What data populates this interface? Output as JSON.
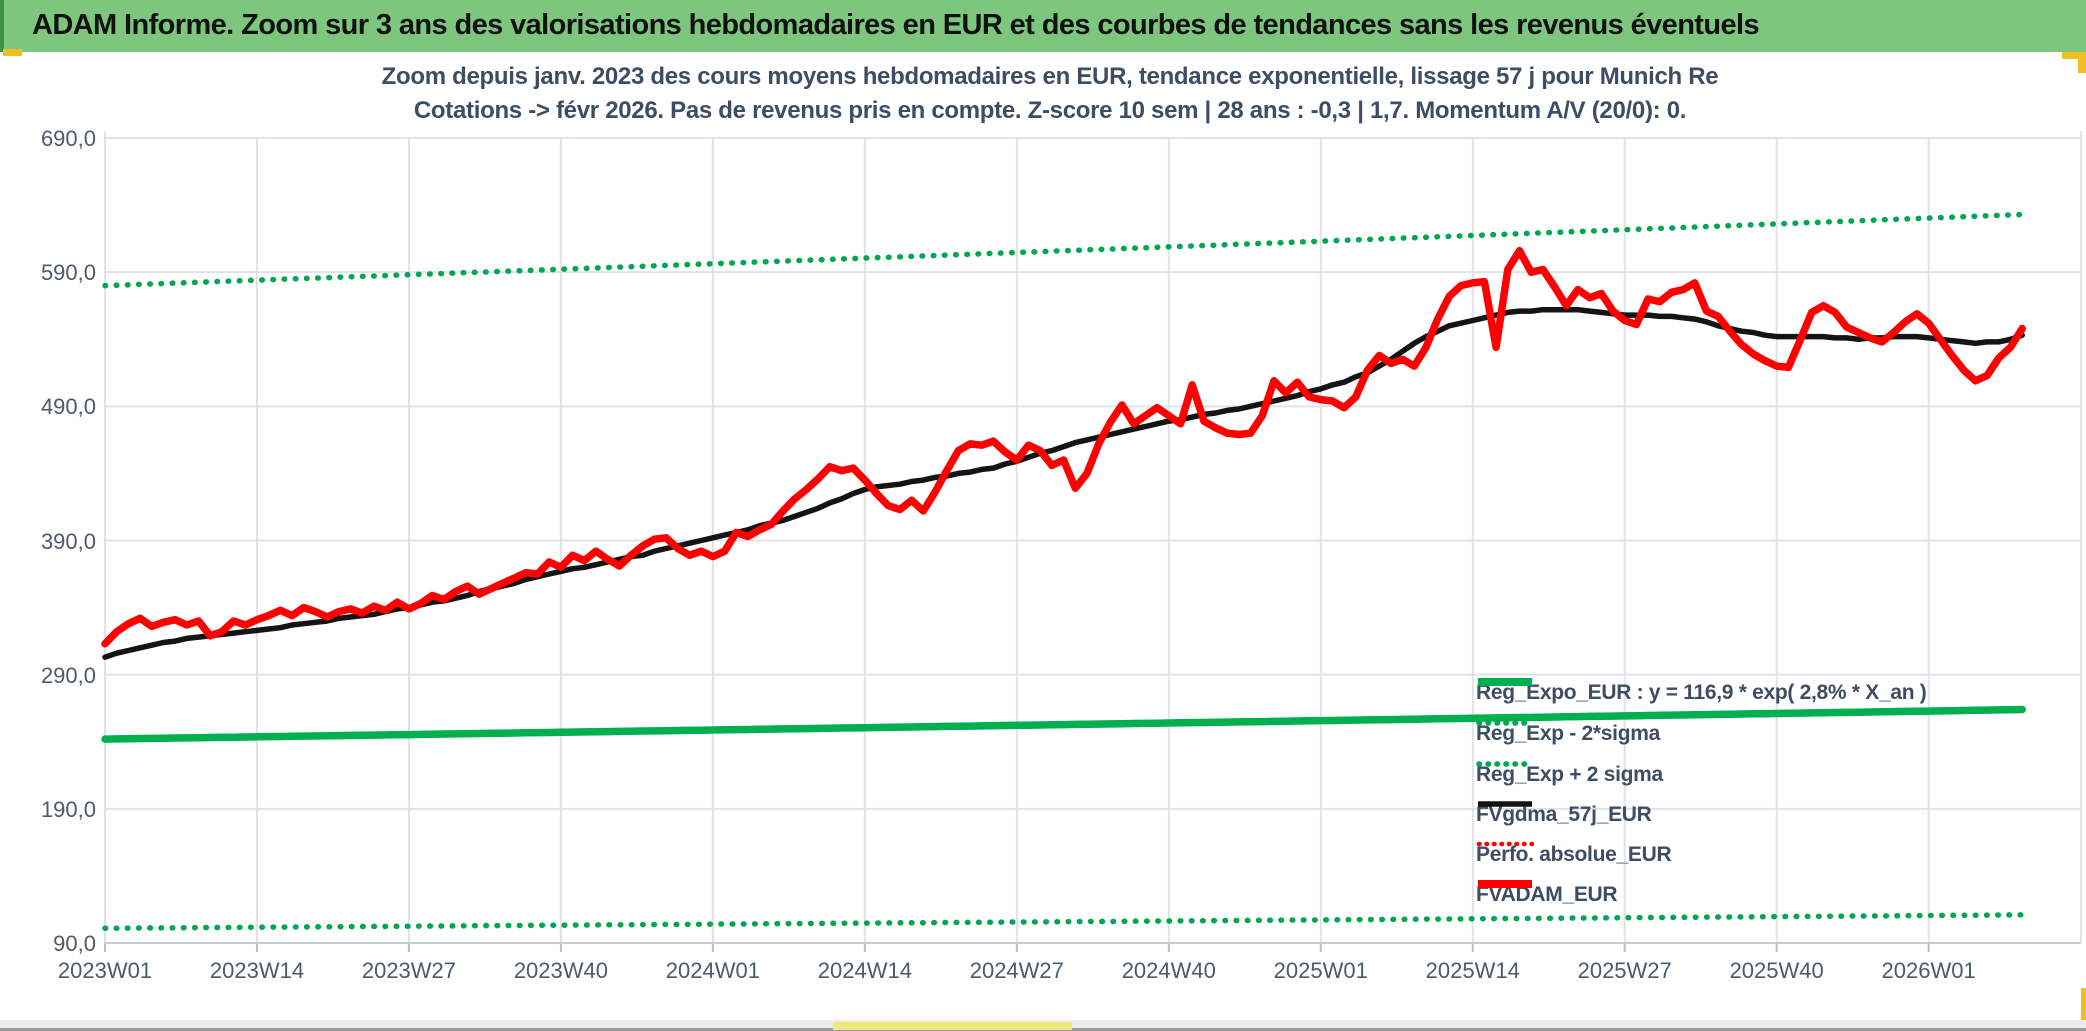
{
  "banner": {
    "title": "ADAM Informe. Zoom sur 3 ans des valorisations hebdomadaires en EUR et des courbes de tendances sans les revenus éventuels"
  },
  "colors": {
    "banner_green": "#7cc67e",
    "banner_edge_green": "#3f9142",
    "accent_yellow": "#efbe25",
    "sheet_tab_yellow": "#efe97c",
    "grid": "#dfe3e9",
    "axis_text": "#4d5a6b",
    "title_text": "#3d4d63",
    "reg_green": "#00b050",
    "dotted_green": "#00a651",
    "series_black": "#141414",
    "series_red": "#fe0000"
  },
  "chart_data": {
    "type": "line",
    "title_line1": "Zoom depuis janv. 2023 des cours moyens hebdomadaires en EUR, tendance exponentielle, lissage 57 j pour Munich Re",
    "title_line2": "Cotations -> févr 2026. Pas de revenus pris en compte. Z-score 10 sem | 28 ans : -0,3 | 1,7. Momentum A/V (20/0): 0.",
    "ylim": [
      90,
      690
    ],
    "y_tick_values": [
      690,
      590,
      490,
      390,
      290,
      190,
      90
    ],
    "y_tick_labels": [
      "690,0",
      "590,0",
      "490,0",
      "390,0",
      "290,0",
      "190,0",
      "90,0"
    ],
    "x_tick_labels": [
      "2023W01",
      "2023W14",
      "2023W27",
      "2023W40",
      "2024W01",
      "2024W14",
      "2024W27",
      "2024W40",
      "2025W01",
      "2025W14",
      "2025W27",
      "2025W40",
      "2026W01"
    ],
    "x_tick_week_step": 13,
    "weeks_total": 164,
    "grid": true,
    "legend_position": "inside-bottom-right",
    "series": [
      {
        "name": "Reg_Expo_EUR : y = 116,9 * exp( 2,8% *  X_an )",
        "style": "solid",
        "color": "#00b050",
        "width": 7.5,
        "trend": {
          "start": 242,
          "end": 264
        }
      },
      {
        "name": "Reg_Exp - 2*sigma",
        "style": "dotted",
        "color": "#00a651",
        "width": 5.5,
        "trend": {
          "start": 101,
          "end": 111
        }
      },
      {
        "name": "Reg_Exp + 2 sigma",
        "style": "dotted",
        "color": "#00a651",
        "width": 5.5,
        "trend": {
          "start": 580,
          "end": 633
        }
      },
      {
        "name": "FVgdma_57j_EUR",
        "style": "solid",
        "color": "#141414",
        "width": 5.5,
        "values": [
          303,
          306,
          308,
          310,
          312,
          314,
          315,
          317,
          318,
          319,
          320,
          321,
          322,
          323,
          324,
          325,
          327,
          328,
          329,
          330,
          332,
          333,
          334,
          335,
          337,
          339,
          340,
          342,
          344,
          345,
          347,
          349,
          352,
          354,
          356,
          358,
          361,
          363,
          365,
          367,
          369,
          370,
          372,
          374,
          376,
          378,
          379,
          382,
          384,
          386,
          388,
          390,
          392,
          394,
          396,
          398,
          401,
          403,
          405,
          408,
          411,
          414,
          418,
          421,
          425,
          428,
          430,
          431,
          432,
          434,
          435,
          437,
          438,
          440,
          441,
          443,
          444,
          447,
          449,
          452,
          455,
          457,
          460,
          463,
          465,
          467,
          469,
          471,
          473,
          475,
          477,
          479,
          480,
          482,
          484,
          485,
          487,
          488,
          490,
          492,
          494,
          496,
          498,
          501,
          503,
          506,
          508,
          512,
          515,
          520,
          525,
          531,
          537,
          542,
          546,
          550,
          552,
          554,
          556,
          558,
          560,
          561,
          561,
          562,
          562,
          562,
          562,
          561,
          560,
          559,
          558,
          558,
          558,
          557,
          557,
          556,
          555,
          553,
          550,
          548,
          546,
          545,
          543,
          542,
          542,
          542,
          542,
          542,
          541,
          541,
          540,
          541,
          541,
          542,
          542,
          542,
          541,
          540,
          539,
          538,
          537,
          538,
          538,
          540,
          543
        ]
      },
      {
        "name": "Perfo. absolue_EUR",
        "style": "dotted",
        "color": "#fe0000",
        "width": 4,
        "same_as": "FVADAM_EUR"
      },
      {
        "name": "FVADAM_EUR",
        "style": "solid",
        "color": "#fe0000",
        "width": 7.5,
        "values": [
          313,
          322,
          328,
          332,
          326,
          329,
          331,
          327,
          330,
          319,
          322,
          330,
          327,
          331,
          334,
          338,
          334,
          340,
          337,
          333,
          337,
          339,
          336,
          341,
          338,
          344,
          339,
          343,
          349,
          346,
          352,
          356,
          350,
          354,
          358,
          362,
          366,
          365,
          374,
          370,
          379,
          375,
          382,
          376,
          371,
          379,
          386,
          391,
          392,
          384,
          379,
          382,
          378,
          382,
          396,
          393,
          398,
          402,
          412,
          421,
          428,
          436,
          445,
          442,
          444,
          435,
          425,
          416,
          413,
          420,
          412,
          426,
          442,
          457,
          462,
          461,
          464,
          456,
          450,
          461,
          457,
          446,
          450,
          429,
          440,
          462,
          478,
          491,
          477,
          483,
          489,
          483,
          477,
          506,
          479,
          474,
          470,
          469,
          470,
          483,
          509,
          500,
          508,
          497,
          495,
          494,
          489,
          497,
          517,
          528,
          522,
          525,
          520,
          534,
          555,
          572,
          580,
          582,
          583,
          534,
          592,
          606,
          590,
          592,
          579,
          565,
          577,
          571,
          574,
          561,
          554,
          551,
          570,
          568,
          575,
          577,
          582,
          561,
          557,
          546,
          536,
          529,
          524,
          520,
          519,
          539,
          560,
          565,
          560,
          549,
          545,
          541,
          538,
          545,
          553,
          559,
          552,
          540,
          528,
          517,
          509,
          513,
          526,
          534,
          548
        ]
      }
    ]
  }
}
